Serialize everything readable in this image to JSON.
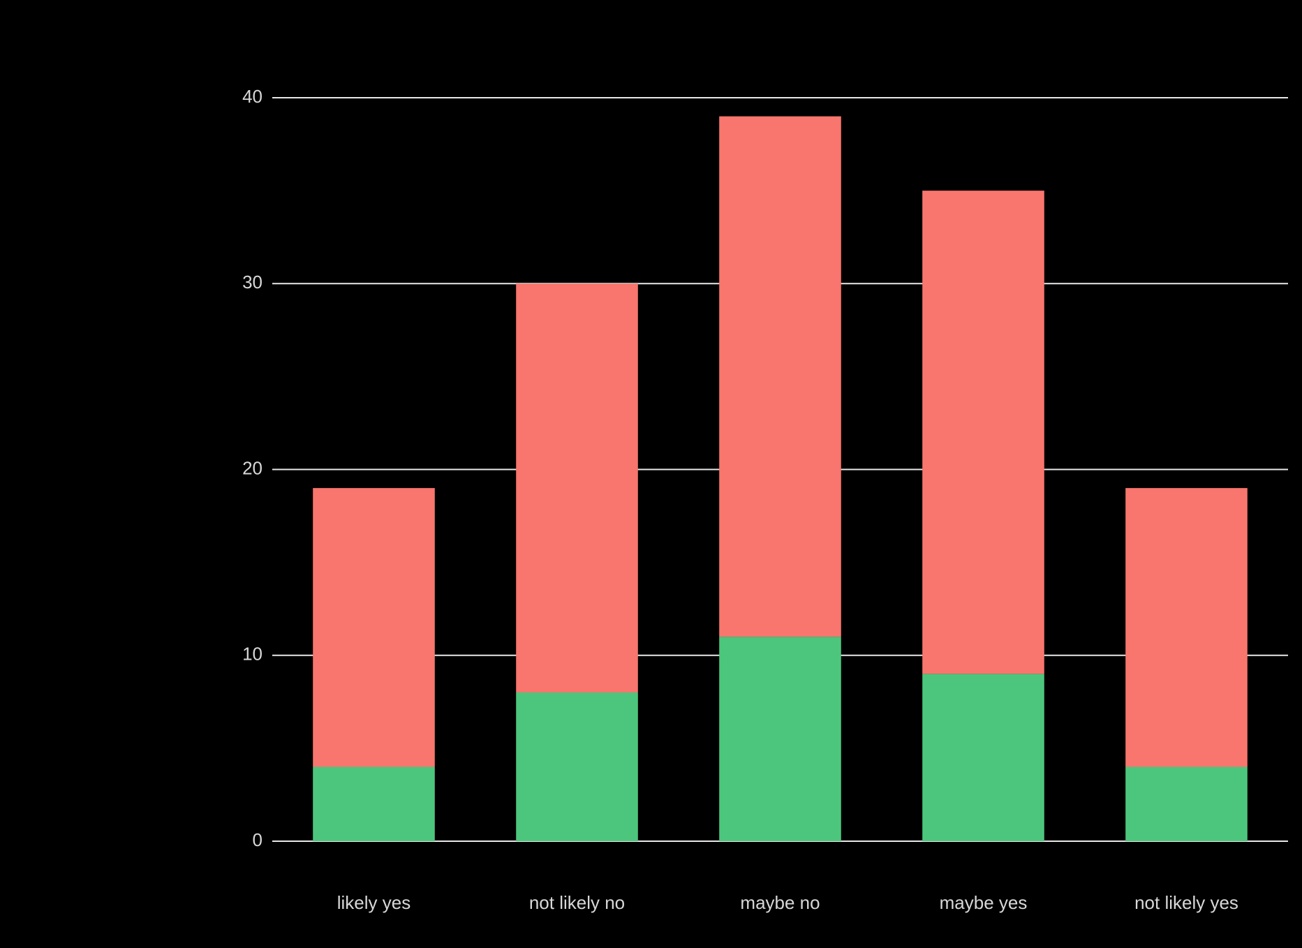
{
  "chart_data": {
    "type": "stacked-bar",
    "categories": [
      "likely yes",
      "not likely no",
      "maybe no",
      "maybe yes",
      "not likely yes"
    ],
    "series": [
      {
        "color": "#4cc67c",
        "values": [
          4,
          8,
          11,
          9,
          4
        ]
      },
      {
        "color": "#f8766d",
        "values": [
          15,
          22,
          28,
          26,
          15
        ]
      }
    ],
    "ylim": [
      0,
      40
    ],
    "yticks": [
      0,
      10,
      20,
      30,
      40
    ],
    "grid": true
  }
}
